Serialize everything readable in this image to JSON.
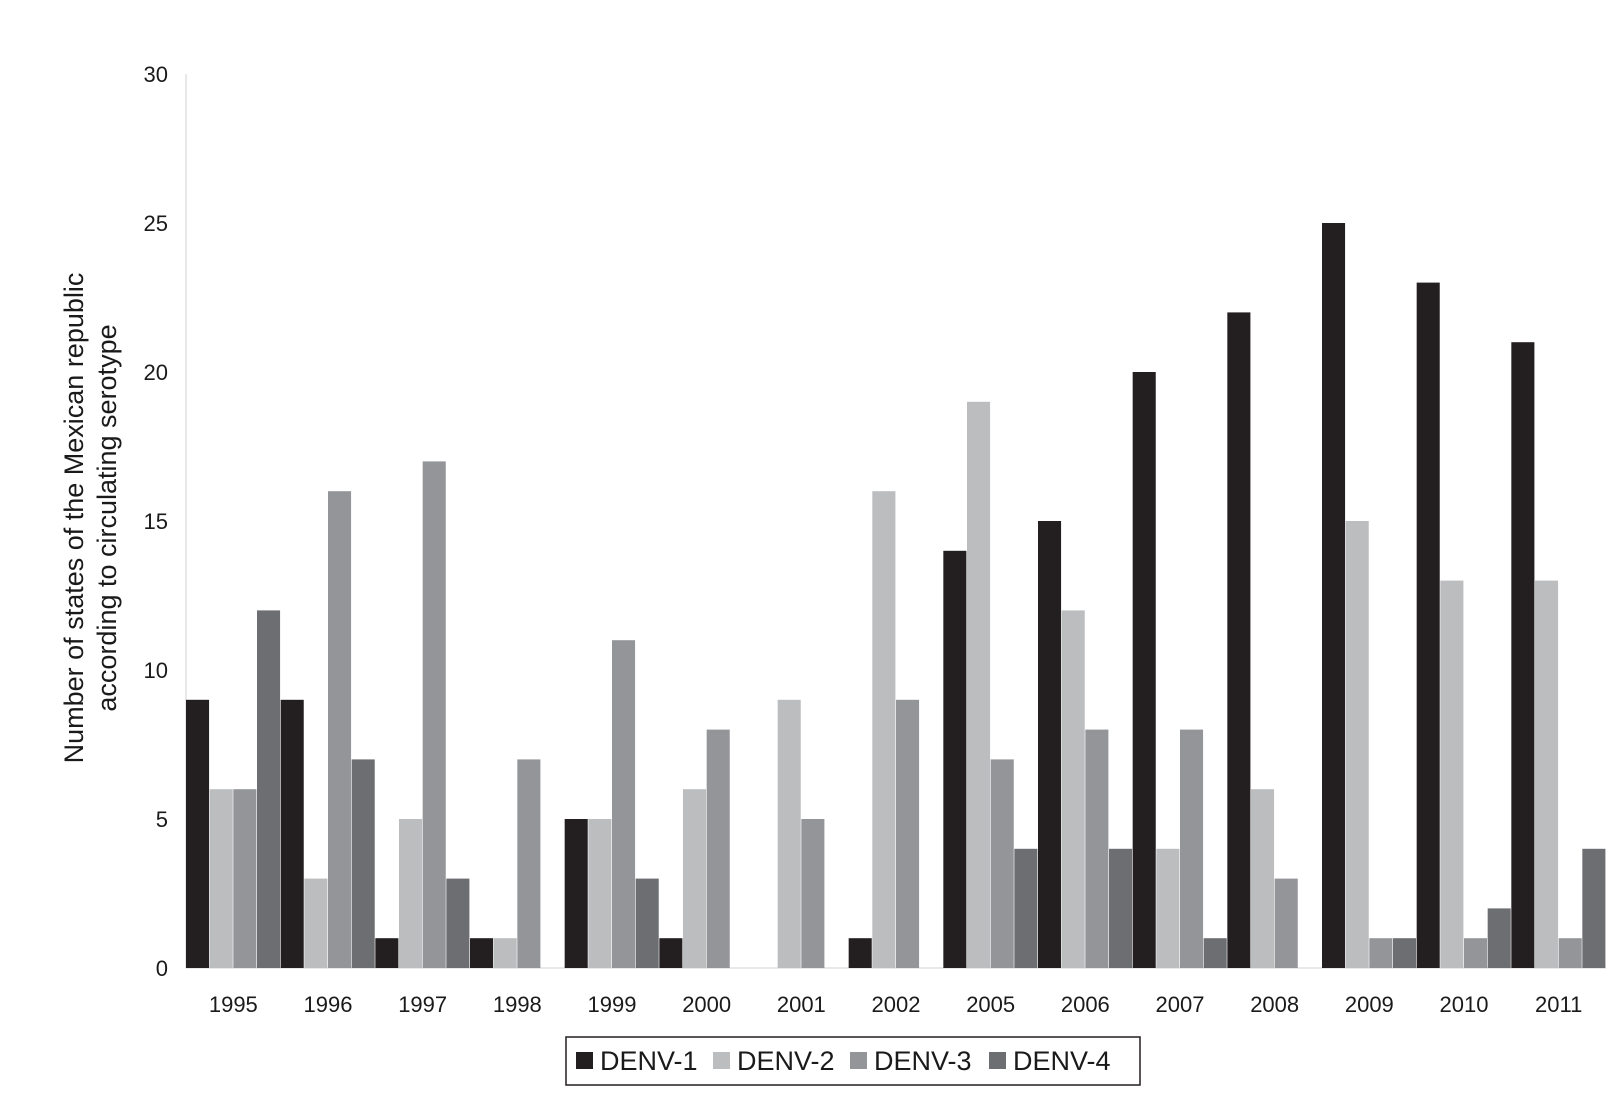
{
  "chart_data": {
    "type": "bar",
    "title": "",
    "xlabel": "",
    "ylabel_lines": [
      "Number of states of the Mexican republic",
      "according to circulating serotype"
    ],
    "ylim": [
      0,
      30
    ],
    "yticks": [
      0,
      5,
      10,
      15,
      20,
      25,
      30
    ],
    "grid": false,
    "legend_position": "bottom-center",
    "categories": [
      "1995",
      "1996",
      "1997",
      "1998",
      "1999",
      "2000",
      "2001",
      "2002",
      "2005",
      "2006",
      "2007",
      "2008",
      "2009",
      "2010",
      "2011"
    ],
    "series": [
      {
        "name": "DENV-1",
        "color": "#231f20",
        "values": [
          9,
          9,
          1,
          1,
          5,
          1,
          0,
          1,
          14,
          15,
          20,
          22,
          25,
          23,
          21
        ]
      },
      {
        "name": "DENV-2",
        "color": "#bcbdbf",
        "values": [
          6,
          3,
          5,
          1,
          5,
          6,
          9,
          16,
          19,
          12,
          4,
          6,
          15,
          13,
          13
        ]
      },
      {
        "name": "DENV-3",
        "color": "#939598",
        "values": [
          6,
          16,
          17,
          7,
          11,
          8,
          5,
          9,
          7,
          8,
          8,
          3,
          1,
          1,
          1
        ]
      },
      {
        "name": "DENV-4",
        "color": "#6d6e71",
        "values": [
          12,
          7,
          3,
          0,
          3,
          0,
          0,
          0,
          4,
          4,
          1,
          0,
          1,
          2,
          4
        ]
      }
    ]
  }
}
